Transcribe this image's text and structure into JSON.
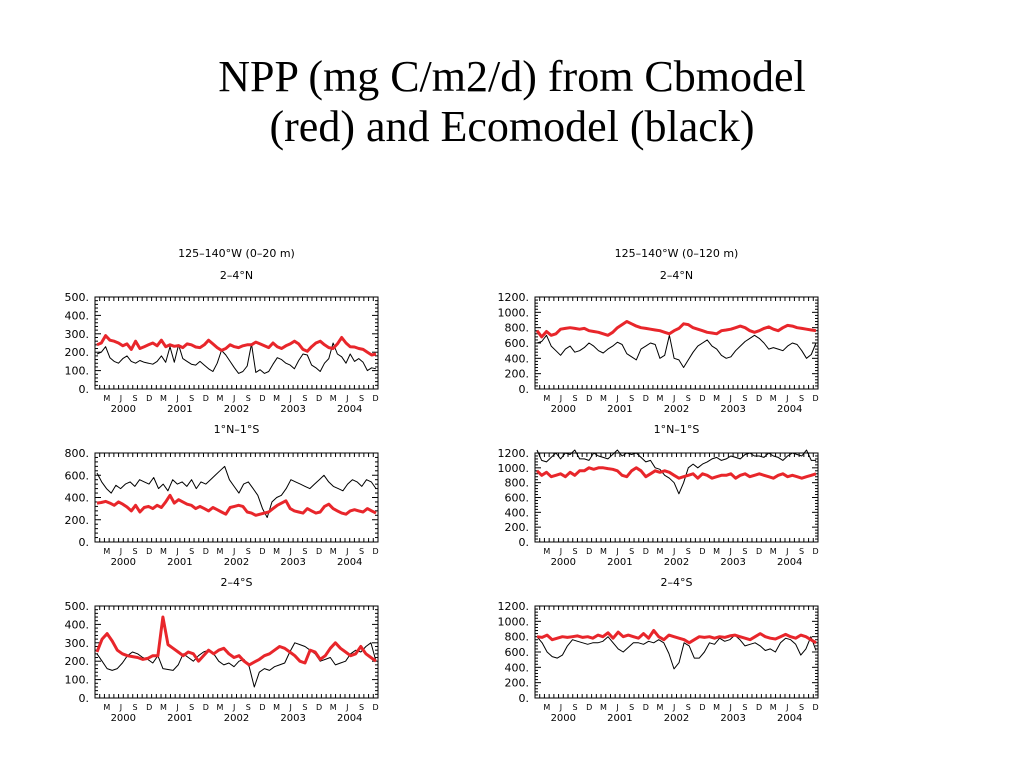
{
  "slide": {
    "title_line1": "NPP (mg C/m2/d) from Cbmodel",
    "title_line2": "(red) and Ecomodel (black)"
  },
  "colors": {
    "cbmodel": "#e8262b",
    "ecomodel": "#000000"
  },
  "chart_data": [
    {
      "type": "line",
      "title": "125–140°W (0–20 m)",
      "subtitle": "2–4°N",
      "ylim": [
        0,
        500
      ],
      "yticks": [
        "500.",
        "400.",
        "300.",
        "200.",
        "100.",
        "0."
      ],
      "xticks": [
        "M",
        "J",
        "S",
        "D",
        "M",
        "J",
        "S",
        "D",
        "M",
        "J",
        "S",
        "D",
        "M",
        "J",
        "S",
        "D",
        "M",
        "J",
        "S",
        "D"
      ],
      "years": [
        "2000",
        "2001",
        "2002",
        "2003",
        "2004"
      ],
      "series": [
        {
          "values": [
            240,
            250,
            290,
            265,
            260,
            250,
            235,
            245,
            215,
            260,
            220,
            230,
            240,
            250,
            235,
            265,
            230,
            240,
            232,
            236,
            225,
            245,
            240,
            228,
            225,
            240,
            265,
            245,
            225,
            210,
            220,
            240,
            230,
            225,
            235,
            240,
            240,
            255,
            245,
            235,
            225,
            250,
            230,
            220,
            235,
            245,
            260,
            245,
            215,
            205,
            230,
            250,
            260,
            240,
            225,
            220,
            245,
            280,
            250,
            230,
            228,
            220,
            215,
            200,
            185,
            190
          ]
        },
        {
          "values": [
            190,
            200,
            230,
            170,
            150,
            140,
            165,
            180,
            150,
            140,
            155,
            145,
            140,
            135,
            150,
            180,
            145,
            230,
            145,
            240,
            165,
            150,
            135,
            130,
            150,
            130,
            110,
            95,
            140,
            210,
            185,
            150,
            115,
            85,
            95,
            125,
            245,
            90,
            105,
            85,
            95,
            135,
            170,
            160,
            140,
            130,
            110,
            155,
            190,
            185,
            130,
            115,
            95,
            140,
            165,
            250,
            190,
            175,
            140,
            190,
            150,
            165,
            145,
            100,
            115,
            110
          ]
        }
      ]
    },
    {
      "type": "line",
      "title": "125–140°W (0–120 m)",
      "subtitle": "2–4°N",
      "ylim": [
        0,
        1200
      ],
      "yticks": [
        "1200.",
        "1000.",
        "800.",
        "600.",
        "400.",
        "200.",
        "0."
      ],
      "xticks": [
        "M",
        "J",
        "S",
        "D",
        "M",
        "J",
        "S",
        "D",
        "M",
        "J",
        "S",
        "D",
        "M",
        "J",
        "S",
        "D",
        "M",
        "J",
        "S",
        "D"
      ],
      "years": [
        "2000",
        "2001",
        "2002",
        "2003",
        "2004"
      ],
      "series": [
        {
          "values": [
            760,
            680,
            750,
            700,
            720,
            780,
            790,
            800,
            790,
            780,
            790,
            760,
            750,
            740,
            720,
            700,
            740,
            800,
            840,
            880,
            850,
            820,
            800,
            790,
            780,
            770,
            760,
            740,
            720,
            760,
            790,
            850,
            840,
            800,
            780,
            760,
            740,
            730,
            720,
            760,
            770,
            780,
            800,
            820,
            800,
            760,
            740,
            760,
            790,
            810,
            780,
            760,
            800,
            830,
            820,
            800,
            790,
            780,
            770,
            760
          ]
        },
        {
          "values": [
            600,
            620,
            700,
            560,
            500,
            440,
            520,
            560,
            480,
            500,
            540,
            600,
            560,
            500,
            470,
            520,
            560,
            610,
            580,
            460,
            420,
            380,
            520,
            560,
            600,
            580,
            400,
            440,
            700,
            400,
            380,
            280,
            380,
            480,
            560,
            600,
            640,
            560,
            520,
            440,
            400,
            420,
            500,
            560,
            620,
            660,
            700,
            660,
            600,
            520,
            540,
            520,
            500,
            560,
            600,
            580,
            500,
            400,
            450,
            600
          ]
        }
      ]
    },
    {
      "type": "line",
      "title": "",
      "subtitle": "1°N–1°S",
      "ylim": [
        0,
        800
      ],
      "yticks": [
        "800.",
        "600.",
        "400.",
        "200.",
        "0."
      ],
      "xticks": [
        "M",
        "J",
        "S",
        "D",
        "M",
        "J",
        "S",
        "D",
        "M",
        "J",
        "S",
        "D",
        "M",
        "J",
        "S",
        "D",
        "M",
        "J",
        "S",
        "D"
      ],
      "years": [
        "2000",
        "2001",
        "2002",
        "2003",
        "2004"
      ],
      "series": [
        {
          "values": [
            350,
            355,
            365,
            350,
            330,
            360,
            340,
            315,
            280,
            330,
            270,
            310,
            320,
            300,
            330,
            310,
            360,
            420,
            350,
            380,
            360,
            340,
            330,
            300,
            320,
            300,
            280,
            310,
            290,
            270,
            250,
            310,
            320,
            330,
            320,
            270,
            260,
            240,
            250,
            260,
            270,
            300,
            330,
            350,
            370,
            300,
            280,
            270,
            260,
            300,
            280,
            260,
            270,
            320,
            340,
            300,
            280,
            260,
            250,
            280,
            290,
            280,
            270,
            300,
            280,
            260
          ]
        },
        {
          "values": [
            620,
            540,
            480,
            440,
            510,
            480,
            520,
            540,
            500,
            560,
            540,
            520,
            580,
            480,
            520,
            460,
            560,
            520,
            540,
            500,
            560,
            480,
            540,
            520,
            560,
            600,
            640,
            680,
            560,
            500,
            440,
            520,
            540,
            480,
            420,
            300,
            220,
            360,
            400,
            420,
            480,
            560,
            540,
            520,
            500,
            480,
            520,
            560,
            600,
            540,
            500,
            480,
            460,
            520,
            560,
            540,
            500,
            560,
            540,
            480
          ]
        }
      ]
    },
    {
      "type": "line",
      "title": "",
      "subtitle": "1°N–1°S",
      "ylim": [
        0,
        1200
      ],
      "yticks": [
        "1200.",
        "1000.",
        "800.",
        "600.",
        "400.",
        "200.",
        "0."
      ],
      "xticks": [
        "M",
        "J",
        "S",
        "D",
        "M",
        "J",
        "S",
        "D",
        "M",
        "J",
        "S",
        "D",
        "M",
        "J",
        "S",
        "D",
        "M",
        "J",
        "S",
        "D"
      ],
      "years": [
        "2000",
        "2001",
        "2002",
        "2003",
        "2004"
      ],
      "series": [
        {
          "values": [
            960,
            900,
            940,
            880,
            900,
            920,
            880,
            940,
            900,
            960,
            960,
            1000,
            980,
            1000,
            1000,
            990,
            980,
            960,
            900,
            880,
            960,
            1000,
            960,
            880,
            920,
            960,
            940,
            960,
            940,
            900,
            860,
            880,
            900,
            920,
            860,
            920,
            900,
            860,
            880,
            900,
            900,
            920,
            860,
            900,
            920,
            880,
            900,
            920,
            900,
            880,
            860,
            900,
            920,
            880,
            900,
            880,
            860,
            880,
            900,
            920
          ]
        },
        {
          "values": [
            1240,
            1100,
            1080,
            1140,
            1200,
            1120,
            1200,
            1180,
            1240,
            1120,
            1120,
            1100,
            1200,
            1160,
            1140,
            1120,
            1180,
            1240,
            1160,
            1200,
            1180,
            1200,
            1140,
            1080,
            1100,
            1000,
            980,
            900,
            860,
            800,
            650,
            800,
            1000,
            1050,
            1000,
            1050,
            1080,
            1120,
            1140,
            1100,
            1120,
            1160,
            1140,
            1120,
            1180,
            1200,
            1160,
            1160,
            1140,
            1200,
            1160,
            1140,
            1100,
            1160,
            1200,
            1180,
            1160,
            1240,
            1100,
            1100
          ]
        }
      ]
    },
    {
      "type": "line",
      "title": "",
      "subtitle": "2–4°S",
      "ylim": [
        0,
        500
      ],
      "yticks": [
        "500.",
        "400.",
        "300.",
        "200.",
        "100.",
        "0."
      ],
      "xticks": [
        "M",
        "J",
        "S",
        "D",
        "M",
        "J",
        "S",
        "D",
        "M",
        "J",
        "S",
        "D",
        "M",
        "J",
        "S",
        "D",
        "M",
        "J",
        "S",
        "D"
      ],
      "years": [
        "2000",
        "2001",
        "2002",
        "2003",
        "2004"
      ],
      "series": [
        {
          "values": [
            250,
            320,
            350,
            310,
            260,
            240,
            230,
            225,
            220,
            210,
            215,
            230,
            230,
            440,
            290,
            270,
            250,
            230,
            250,
            240,
            200,
            230,
            260,
            240,
            260,
            270,
            240,
            220,
            230,
            200,
            180,
            195,
            210,
            230,
            240,
            260,
            280,
            270,
            250,
            230,
            200,
            190,
            260,
            250,
            210,
            230,
            270,
            300,
            270,
            250,
            230,
            240,
            280,
            240,
            220,
            200
          ]
        },
        {
          "values": [
            240,
            200,
            160,
            150,
            160,
            190,
            230,
            250,
            240,
            220,
            210,
            190,
            230,
            160,
            155,
            150,
            180,
            240,
            220,
            200,
            230,
            250,
            260,
            240,
            200,
            180,
            190,
            170,
            200,
            210,
            170,
            60,
            140,
            160,
            150,
            170,
            180,
            190,
            250,
            300,
            290,
            280,
            260,
            240,
            200,
            210,
            220,
            180,
            190,
            200,
            240,
            260,
            250,
            280,
            300,
            200
          ]
        }
      ]
    },
    {
      "type": "line",
      "title": "",
      "subtitle": "2–4°S",
      "ylim": [
        0,
        1200
      ],
      "yticks": [
        "1200.",
        "1000.",
        "800.",
        "600.",
        "400.",
        "200.",
        "0."
      ],
      "xticks": [
        "M",
        "J",
        "S",
        "D",
        "M",
        "J",
        "S",
        "D",
        "M",
        "J",
        "S",
        "D",
        "M",
        "J",
        "S",
        "D",
        "M",
        "J",
        "S",
        "D"
      ],
      "years": [
        "2000",
        "2001",
        "2002",
        "2003",
        "2004"
      ],
      "series": [
        {
          "values": [
            800,
            790,
            820,
            760,
            780,
            800,
            790,
            800,
            810,
            790,
            800,
            780,
            820,
            800,
            850,
            780,
            860,
            800,
            820,
            800,
            780,
            840,
            780,
            880,
            800,
            760,
            820,
            800,
            780,
            760,
            720,
            760,
            800,
            790,
            800,
            780,
            800,
            790,
            810,
            820,
            800,
            780,
            760,
            800,
            840,
            800,
            780,
            770,
            800,
            830,
            800,
            780,
            820,
            800,
            760,
            720
          ]
        },
        {
          "values": [
            800,
            720,
            600,
            540,
            520,
            560,
            680,
            760,
            740,
            720,
            700,
            720,
            720,
            740,
            800,
            720,
            640,
            600,
            660,
            720,
            720,
            700,
            740,
            720,
            760,
            720,
            580,
            380,
            460,
            720,
            680,
            520,
            520,
            600,
            720,
            700,
            780,
            740,
            760,
            820,
            760,
            680,
            700,
            720,
            680,
            620,
            640,
            600,
            720,
            780,
            760,
            700,
            560,
            640,
            800,
            620
          ]
        }
      ]
    }
  ]
}
